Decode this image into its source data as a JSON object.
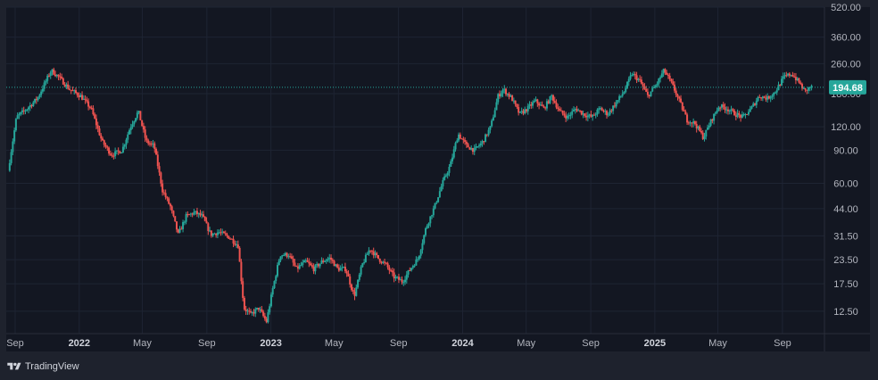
{
  "branding": {
    "name": "TradingView",
    "icon": "tradingview-logo-icon"
  },
  "chart_data": {
    "type": "candlestick",
    "y_scale": "log",
    "ylim": [
      9.5,
      520
    ],
    "y_ticks": [
      "520.00",
      "360.00",
      "260.00",
      "180.00",
      "120.00",
      "90.00",
      "60.00",
      "44.00",
      "31.50",
      "23.50",
      "17.50",
      "12.50"
    ],
    "y_tick_values": [
      520,
      360,
      260,
      180,
      120,
      90,
      60,
      44,
      31.5,
      23.5,
      17.5,
      12.5
    ],
    "x_ticks": [
      {
        "label": "Sep",
        "date": "2021-09-01",
        "bold": false
      },
      {
        "label": "2022",
        "date": "2022-01-01",
        "bold": true
      },
      {
        "label": "May",
        "date": "2022-05-01",
        "bold": false
      },
      {
        "label": "Sep",
        "date": "2022-09-01",
        "bold": false
      },
      {
        "label": "2023",
        "date": "2023-01-01",
        "bold": true
      },
      {
        "label": "May",
        "date": "2023-05-01",
        "bold": false
      },
      {
        "label": "Sep",
        "date": "2023-09-01",
        "bold": false
      },
      {
        "label": "2024",
        "date": "2024-01-01",
        "bold": true
      },
      {
        "label": "May",
        "date": "2024-05-01",
        "bold": false
      },
      {
        "label": "Sep",
        "date": "2024-09-01",
        "bold": false
      },
      {
        "label": "2025",
        "date": "2025-01-01",
        "bold": true
      },
      {
        "label": "May",
        "date": "2025-05-01",
        "bold": false
      },
      {
        "label": "Sep",
        "date": "2025-09-01",
        "bold": false
      }
    ],
    "x_range": [
      "2021-08-15",
      "2025-11-20"
    ],
    "last_price": 194.68,
    "last_price_label": "194.68",
    "colors": {
      "up": "#26a69a",
      "down": "#ef5350",
      "background": "#131722",
      "grid": "#1e2433",
      "price_line": "#26a69a",
      "border": "#2a2e39"
    },
    "price_path": [
      [
        "2021-08-20",
        70
      ],
      [
        "2021-09-05",
        135
      ],
      [
        "2021-09-25",
        150
      ],
      [
        "2021-10-15",
        170
      ],
      [
        "2021-11-10",
        240
      ],
      [
        "2021-11-25",
        220
      ],
      [
        "2021-12-15",
        190
      ],
      [
        "2022-01-05",
        175
      ],
      [
        "2022-01-25",
        150
      ],
      [
        "2022-02-15",
        100
      ],
      [
        "2022-03-05",
        85
      ],
      [
        "2022-03-25",
        90
      ],
      [
        "2022-04-10",
        120
      ],
      [
        "2022-04-25",
        145
      ],
      [
        "2022-05-10",
        100
      ],
      [
        "2022-05-25",
        95
      ],
      [
        "2022-06-10",
        55
      ],
      [
        "2022-06-25",
        45
      ],
      [
        "2022-07-10",
        32
      ],
      [
        "2022-07-25",
        40
      ],
      [
        "2022-08-10",
        42
      ],
      [
        "2022-08-25",
        40
      ],
      [
        "2022-09-10",
        32
      ],
      [
        "2022-09-25",
        33
      ],
      [
        "2022-10-15",
        31
      ],
      [
        "2022-11-01",
        28
      ],
      [
        "2022-11-12",
        13
      ],
      [
        "2022-11-25",
        12
      ],
      [
        "2022-12-10",
        13
      ],
      [
        "2022-12-25",
        11
      ],
      [
        "2023-01-05",
        16
      ],
      [
        "2023-01-20",
        25
      ],
      [
        "2023-02-05",
        25
      ],
      [
        "2023-02-20",
        21
      ],
      [
        "2023-03-10",
        23
      ],
      [
        "2023-03-25",
        21
      ],
      [
        "2023-04-10",
        23
      ],
      [
        "2023-04-25",
        24
      ],
      [
        "2023-05-10",
        21
      ],
      [
        "2023-05-25",
        21
      ],
      [
        "2023-06-10",
        15
      ],
      [
        "2023-06-25",
        22
      ],
      [
        "2023-07-10",
        27
      ],
      [
        "2023-07-25",
        24
      ],
      [
        "2023-08-10",
        22
      ],
      [
        "2023-08-25",
        19
      ],
      [
        "2023-09-10",
        18
      ],
      [
        "2023-09-25",
        21
      ],
      [
        "2023-10-10",
        24
      ],
      [
        "2023-10-25",
        35
      ],
      [
        "2023-11-10",
        45
      ],
      [
        "2023-11-25",
        60
      ],
      [
        "2023-12-10",
        75
      ],
      [
        "2023-12-25",
        110
      ],
      [
        "2024-01-10",
        95
      ],
      [
        "2024-01-25",
        90
      ],
      [
        "2024-02-10",
        100
      ],
      [
        "2024-02-25",
        120
      ],
      [
        "2024-03-10",
        175
      ],
      [
        "2024-03-20",
        190
      ],
      [
        "2024-04-05",
        170
      ],
      [
        "2024-04-20",
        140
      ],
      [
        "2024-05-05",
        150
      ],
      [
        "2024-05-20",
        165
      ],
      [
        "2024-06-05",
        150
      ],
      [
        "2024-06-20",
        175
      ],
      [
        "2024-07-05",
        145
      ],
      [
        "2024-07-20",
        135
      ],
      [
        "2024-08-05",
        150
      ],
      [
        "2024-08-20",
        140
      ],
      [
        "2024-09-05",
        135
      ],
      [
        "2024-09-20",
        150
      ],
      [
        "2024-10-05",
        140
      ],
      [
        "2024-10-20",
        160
      ],
      [
        "2024-11-05",
        185
      ],
      [
        "2024-11-20",
        230
      ],
      [
        "2024-12-05",
        210
      ],
      [
        "2024-12-20",
        175
      ],
      [
        "2025-01-05",
        200
      ],
      [
        "2025-01-20",
        240
      ],
      [
        "2025-02-05",
        200
      ],
      [
        "2025-02-20",
        160
      ],
      [
        "2025-03-05",
        130
      ],
      [
        "2025-03-20",
        125
      ],
      [
        "2025-04-05",
        105
      ],
      [
        "2025-04-20",
        130
      ],
      [
        "2025-05-05",
        155
      ],
      [
        "2025-05-20",
        150
      ],
      [
        "2025-06-05",
        140
      ],
      [
        "2025-06-20",
        135
      ],
      [
        "2025-07-05",
        150
      ],
      [
        "2025-07-20",
        175
      ],
      [
        "2025-08-05",
        170
      ],
      [
        "2025-08-20",
        185
      ],
      [
        "2025-09-05",
        220
      ],
      [
        "2025-09-20",
        230
      ],
      [
        "2025-10-05",
        205
      ],
      [
        "2025-10-15",
        185
      ],
      [
        "2025-10-25",
        195
      ]
    ]
  }
}
